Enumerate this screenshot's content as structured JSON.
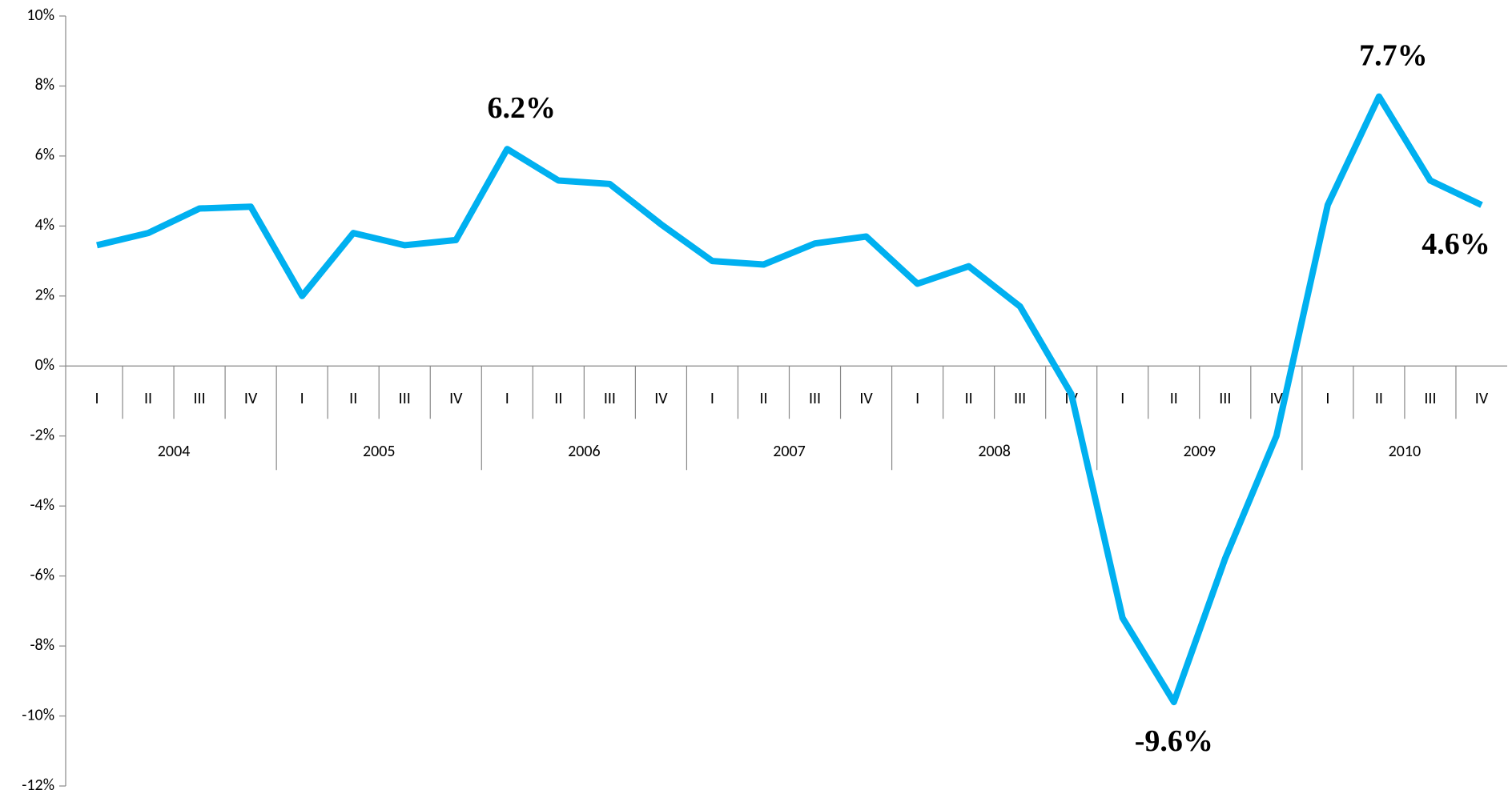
{
  "chart_data": {
    "type": "line",
    "categories": [
      "I",
      "II",
      "III",
      "IV",
      "I",
      "II",
      "III",
      "IV",
      "I",
      "II",
      "III",
      "IV",
      "I",
      "II",
      "III",
      "IV",
      "I",
      "II",
      "III",
      "IV",
      "I",
      "II",
      "III",
      "IV",
      "I",
      "II",
      "III",
      "IV"
    ],
    "category_groups": [
      "2004",
      "2005",
      "2006",
      "2007",
      "2008",
      "2009",
      "2010"
    ],
    "values": [
      3.45,
      3.8,
      4.5,
      4.55,
      2.0,
      3.8,
      3.45,
      3.6,
      6.2,
      5.3,
      5.2,
      4.05,
      3.0,
      2.9,
      3.5,
      3.7,
      2.35,
      2.85,
      1.7,
      -0.8,
      -7.2,
      -9.6,
      -5.5,
      -2.0,
      4.6,
      7.7,
      5.3,
      4.6
    ],
    "value_labels": [
      null,
      null,
      null,
      null,
      null,
      null,
      null,
      null,
      "6.2%",
      null,
      null,
      null,
      null,
      null,
      null,
      null,
      null,
      null,
      null,
      null,
      null,
      "-9.6%",
      null,
      null,
      null,
      "7.7%",
      null,
      "4.6%"
    ],
    "color": "#00b0f0",
    "ylim": [
      -12,
      10
    ],
    "yticks": [
      {
        "value": -12,
        "label": "-12%"
      },
      {
        "value": -10,
        "label": "-10%"
      },
      {
        "value": -8,
        "label": "-8%"
      },
      {
        "value": -6,
        "label": "-6%"
      },
      {
        "value": -4,
        "label": "-4%"
      },
      {
        "value": -2,
        "label": "-2%"
      },
      {
        "value": 0,
        "label": "0%"
      },
      {
        "value": 2,
        "label": "2%"
      },
      {
        "value": 4,
        "label": "4%"
      },
      {
        "value": 6,
        "label": "6%"
      },
      {
        "value": 8,
        "label": "8%"
      },
      {
        "value": 10,
        "label": "10%"
      }
    ],
    "grid": false
  }
}
